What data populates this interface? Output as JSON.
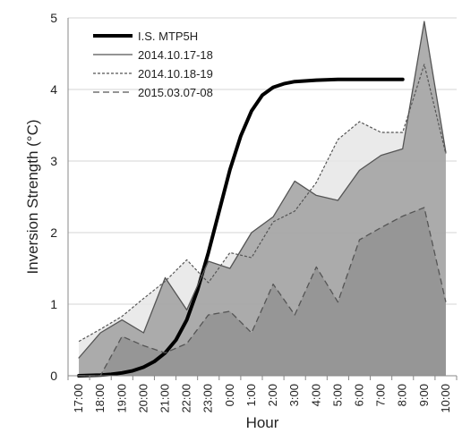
{
  "chart_data": {
    "type": "line",
    "title": "",
    "xlabel": "Hour",
    "ylabel": "Inversion Strength (°C)",
    "ylim": [
      0,
      5
    ],
    "yticks": [
      0,
      1,
      2,
      3,
      4,
      5
    ],
    "grid": "horizontal",
    "legend_position": "top-left",
    "categories": [
      "17:00",
      "18:00",
      "19:00",
      "20:00",
      "21:00",
      "22:00",
      "23:00",
      "0:00",
      "1:00",
      "2:00",
      "3:00",
      "4:00",
      "5:00",
      "6:00",
      "7:00",
      "8:00",
      "9:00",
      "10:00"
    ],
    "series": [
      {
        "name": "I.S. MTP5H",
        "style": "thick-solid",
        "color": "#000000",
        "x": [
          0,
          1,
          1.5,
          2,
          2.5,
          3,
          3.5,
          4,
          4.5,
          5,
          5.5,
          6,
          6.5,
          7,
          7.5,
          8,
          8.5,
          9,
          9.5,
          10,
          11,
          12,
          13,
          14,
          14.5,
          15,
          15.5,
          16,
          16.5,
          17
        ],
        "values": [
          0.0,
          0.01,
          0.02,
          0.04,
          0.07,
          0.12,
          0.2,
          0.32,
          0.5,
          0.78,
          1.2,
          1.72,
          2.3,
          2.88,
          3.35,
          3.7,
          3.92,
          4.03,
          4.08,
          4.11,
          4.13,
          4.14,
          4.14,
          4.14,
          4.14,
          4.14,
          null,
          null,
          null,
          null
        ]
      },
      {
        "name": "2014.10.17-18",
        "style": "thin-solid",
        "color": "#555555",
        "fill": "#a0a0a0",
        "values": [
          0.25,
          0.6,
          0.78,
          0.6,
          1.37,
          0.92,
          1.6,
          1.5,
          2.0,
          2.22,
          2.72,
          2.52,
          2.45,
          2.87,
          3.08,
          3.17,
          4.95,
          3.12
        ]
      },
      {
        "name": "2014.10.18-19",
        "style": "short-dash",
        "color": "#555555",
        "fill": "#e6e6e6",
        "values": [
          0.48,
          0.65,
          0.83,
          1.08,
          1.32,
          1.62,
          1.3,
          1.72,
          1.65,
          2.15,
          2.3,
          2.7,
          3.3,
          3.55,
          3.4,
          3.4,
          4.35,
          3.1
        ]
      },
      {
        "name": "2015.03.07-08",
        "style": "long-dash",
        "color": "#555555",
        "fill": "#8f8f8f",
        "values": [
          0.0,
          0.0,
          0.55,
          0.42,
          0.32,
          0.45,
          0.85,
          0.9,
          0.6,
          1.28,
          0.85,
          1.52,
          1.03,
          1.9,
          2.07,
          2.23,
          2.35,
          1.03
        ]
      }
    ]
  }
}
